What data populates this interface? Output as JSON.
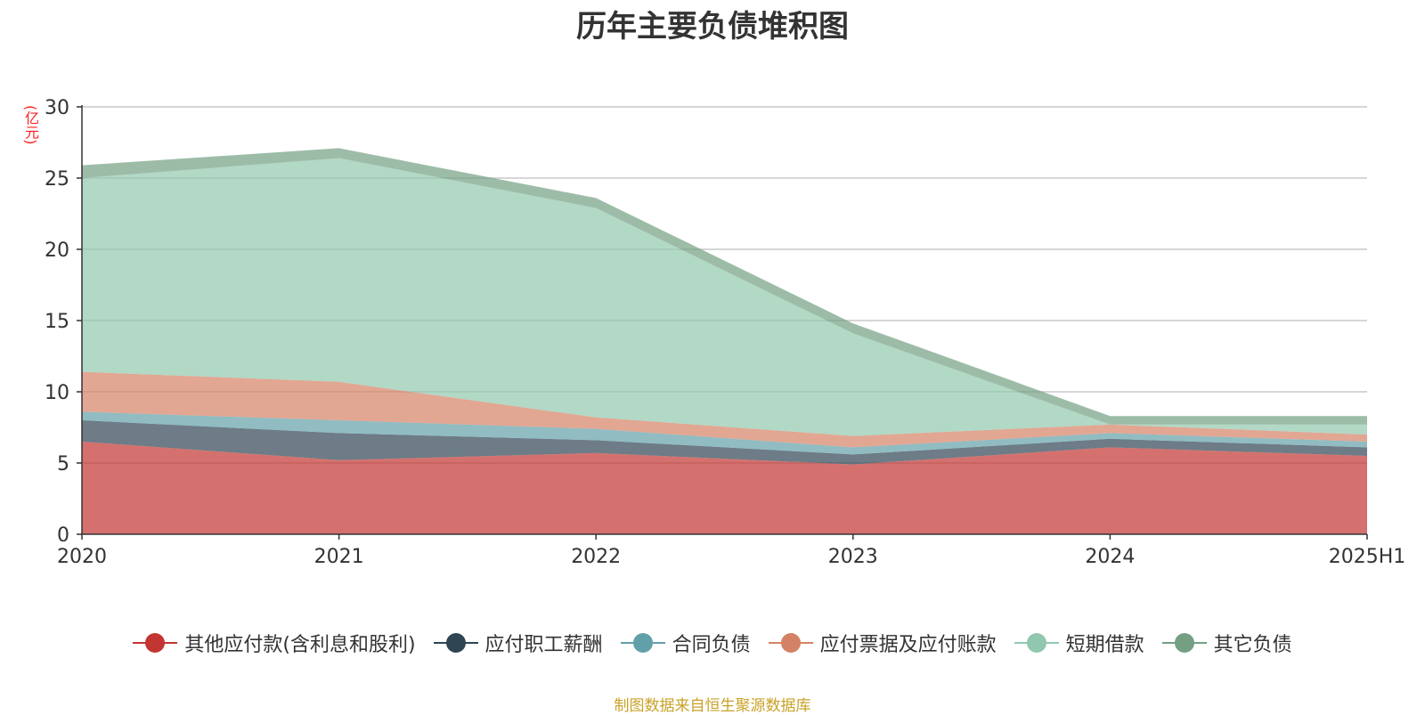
{
  "chart_data": {
    "type": "area",
    "stacked": true,
    "title": "历年主要负债堆积图",
    "ylabel": "(亿元)",
    "categories": [
      "2020",
      "2021",
      "2022",
      "2023",
      "2024",
      "2025H1"
    ],
    "ylim": [
      0,
      30
    ],
    "yticks": [
      0,
      5,
      10,
      15,
      20,
      25,
      30
    ],
    "grid": true,
    "legend_position": "bottom",
    "series": [
      {
        "name": "其他应付款(含利息和股利)",
        "color": "#c23531",
        "values": [
          6.5,
          5.2,
          5.7,
          4.9,
          6.1,
          5.5
        ]
      },
      {
        "name": "应付职工薪酬",
        "color": "#2f4554",
        "values": [
          1.5,
          1.9,
          0.9,
          0.7,
          0.6,
          0.6
        ]
      },
      {
        "name": "合同负债",
        "color": "#61a0a8",
        "values": [
          0.6,
          0.9,
          0.8,
          0.5,
          0.4,
          0.4
        ]
      },
      {
        "name": "应付票据及应付账款",
        "color": "#d48265",
        "values": [
          2.8,
          2.7,
          0.8,
          0.8,
          0.6,
          0.5
        ]
      },
      {
        "name": "短期借款",
        "color": "#91c7ae",
        "values": [
          13.6,
          15.7,
          14.7,
          7.2,
          0.0,
          0.7
        ]
      },
      {
        "name": "其它负债",
        "color": "#749f83",
        "values": [
          0.9,
          0.7,
          0.7,
          0.7,
          0.6,
          0.6
        ]
      }
    ],
    "source": "制图数据来自恒生聚源数据库"
  }
}
